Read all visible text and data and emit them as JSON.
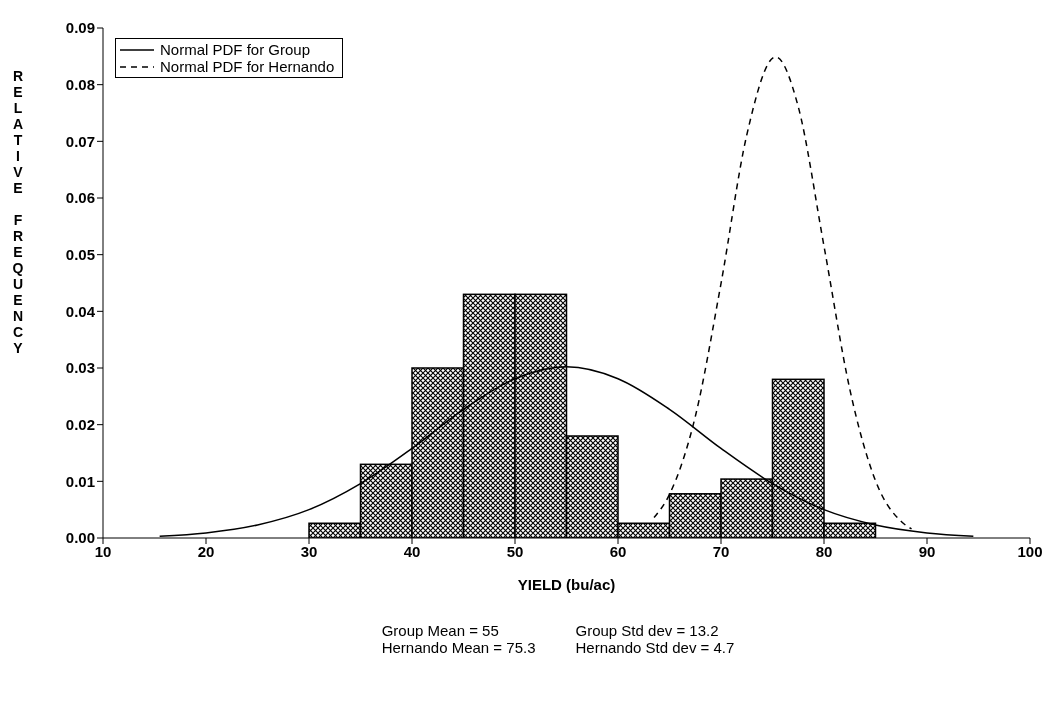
{
  "chart_data": {
    "type": "histogram",
    "xlabel": "YIELD (bu/ac)",
    "ylabel": "RELATIVE FREQUENCY",
    "bins": [
      30,
      35,
      40,
      45,
      50,
      55,
      60,
      65,
      70,
      75,
      80,
      85
    ],
    "values": [
      0.0026,
      0.013,
      0.03,
      0.043,
      0.043,
      0.018,
      0.0026,
      0.0078,
      0.0104,
      0.028,
      0.0026
    ],
    "color": "#000000",
    "series": [
      {
        "type": "line",
        "name": "Normal PDF for Group",
        "color": "#000000",
        "line_style": "solid",
        "x": [
          15.5,
          20,
          25,
          30,
          35,
          40,
          45,
          50,
          55,
          60,
          65,
          70,
          75,
          80,
          85,
          90,
          94.5
        ],
        "values": [
          0.0003,
          0.0009,
          0.0023,
          0.005,
          0.0096,
          0.0158,
          0.0227,
          0.0281,
          0.0302,
          0.0281,
          0.0227,
          0.0158,
          0.0096,
          0.005,
          0.0023,
          0.0009,
          0.0003
        ]
      },
      {
        "type": "line",
        "name": "Normal PDF for Hernando",
        "color": "#000000",
        "line_style": "dashed",
        "x": [
          63.5,
          65,
          67.5,
          70,
          72.5,
          75.3,
          77.5,
          80,
          82.5,
          85,
          87.5,
          88.5
        ],
        "values": [
          0.0036,
          0.0077,
          0.0214,
          0.0449,
          0.0711,
          0.0849,
          0.0761,
          0.0515,
          0.0263,
          0.0101,
          0.0029,
          0.0016
        ]
      }
    ],
    "xlim": [
      10,
      100
    ],
    "xticks": [
      10,
      20,
      30,
      40,
      50,
      60,
      70,
      80,
      90,
      100
    ],
    "ylim": [
      0,
      0.09
    ],
    "yticks": [
      {
        "value": 0,
        "label": "0.00"
      },
      0.01,
      0.02,
      0.03,
      0.04,
      0.05,
      0.06,
      0.07,
      0.08,
      0.09
    ],
    "grid": false,
    "legend": "top left",
    "marker": "none",
    "annotations": [
      "Group Mean = 55",
      "Group Std dev = 13.2",
      "Hernando Mean = 75.3",
      "Hernando Std dev = 4.7"
    ]
  }
}
